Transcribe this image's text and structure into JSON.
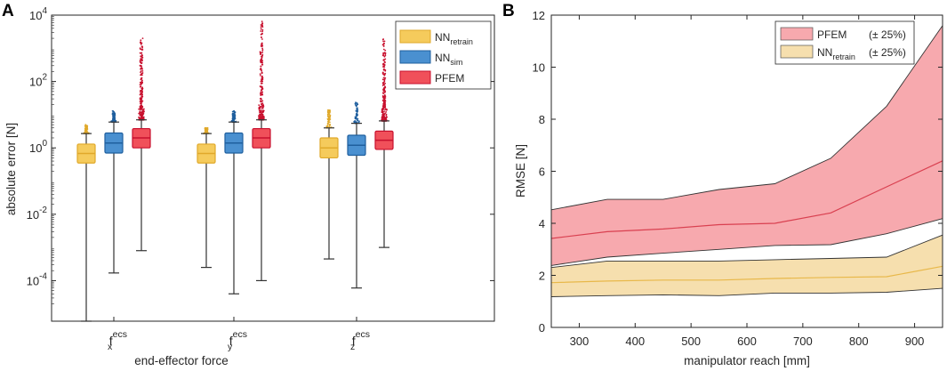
{
  "panels": {
    "a_letter": "A",
    "b_letter": "B"
  },
  "chart_data": [
    {
      "type": "box",
      "panel": "A",
      "xlabel": "end-effector force",
      "ylabel": "absolute error [N]",
      "yscale": "log",
      "ylim": [
        6e-06,
        10000
      ],
      "ytick_labels": [
        {
          "base": "10",
          "exp": "4",
          "value": 10000
        },
        {
          "base": "10",
          "exp": "2",
          "value": 100
        },
        {
          "base": "10",
          "exp": "0",
          "value": 1
        },
        {
          "base": "10",
          "exp": "-2",
          "value": 0.01
        },
        {
          "base": "10",
          "exp": "-4",
          "value": 0.0001
        }
      ],
      "categories": [
        {
          "base": "f",
          "sup": "ecs",
          "sub": "x"
        },
        {
          "base": "f",
          "sup": "ecs",
          "sub": "y"
        },
        {
          "base": "f",
          "sup": "ecs",
          "sub": "z"
        }
      ],
      "legend": [
        {
          "base": "NN",
          "sub": "retrain",
          "color": "#f5cb5c",
          "edge": "#e0a92a"
        },
        {
          "base": "NN",
          "sub": "sim",
          "color": "#4a90d0",
          "edge": "#1f5f9e"
        },
        {
          "base": "PFEM",
          "sub": "",
          "color": "#f0505a",
          "edge": "#c8102e"
        }
      ],
      "series": [
        {
          "name": "NN_retrain",
          "color": "#f5cb5c",
          "edge": "#e0a92a",
          "boxes": [
            {
              "whislo": 6e-06,
              "q1": 0.35,
              "med": 0.68,
              "q3": 1.3,
              "whishi": 2.7,
              "outmax": 5
            },
            {
              "whislo": 0.00025,
              "q1": 0.35,
              "med": 0.68,
              "q3": 1.3,
              "whishi": 2.7,
              "outmax": 4
            },
            {
              "whislo": 0.00045,
              "q1": 0.5,
              "med": 1.0,
              "q3": 2.0,
              "whishi": 4.0,
              "outmax": 15
            }
          ]
        },
        {
          "name": "NN_sim",
          "color": "#4a90d0",
          "edge": "#1f5f9e",
          "boxes": [
            {
              "whislo": 0.00017,
              "q1": 0.7,
              "med": 1.4,
              "q3": 2.8,
              "whishi": 6.0,
              "outmax": 13
            },
            {
              "whislo": 4e-05,
              "q1": 0.7,
              "med": 1.4,
              "q3": 2.8,
              "whishi": 6.0,
              "outmax": 13
            },
            {
              "whislo": 6e-05,
              "q1": 0.6,
              "med": 1.2,
              "q3": 2.4,
              "whishi": 5.5,
              "outmax": 25
            }
          ]
        },
        {
          "name": "PFEM",
          "color": "#f0505a",
          "edge": "#c8102e",
          "boxes": [
            {
              "whislo": 0.0008,
              "q1": 1.0,
              "med": 2.0,
              "q3": 3.8,
              "whishi": 7.0,
              "outmax": 2000
            },
            {
              "whislo": 0.0001,
              "q1": 1.0,
              "med": 2.0,
              "q3": 3.8,
              "whishi": 7.0,
              "outmax": 7000
            },
            {
              "whislo": 0.001,
              "q1": 0.9,
              "med": 1.7,
              "q3": 3.2,
              "whishi": 6.5,
              "outmax": 2000
            }
          ]
        }
      ]
    },
    {
      "type": "area",
      "panel": "B",
      "xlabel": "manipulator reach [mm]",
      "ylabel": "RMSE [N]",
      "xlim": [
        250,
        950
      ],
      "ylim": [
        0,
        12
      ],
      "xticks": [
        300,
        400,
        500,
        600,
        700,
        800,
        900
      ],
      "yticks": [
        0,
        2,
        4,
        6,
        8,
        10,
        12
      ],
      "x": [
        250,
        350,
        450,
        550,
        650,
        750,
        850,
        950
      ],
      "legend": [
        {
          "base": "PFEM",
          "sub": "",
          "note": "(± 25%)",
          "fill": "#f7a9ae",
          "line": "#d94050"
        },
        {
          "base": "NN",
          "sub": "retrain",
          "note": "(± 25%)",
          "fill": "#f6dfae",
          "line": "#e8b84a"
        }
      ],
      "series": [
        {
          "name": "PFEM",
          "fill": "#f7a9ae",
          "line": "#d94050",
          "mean": [
            3.42,
            3.68,
            3.78,
            3.95,
            4.0,
            4.4,
            5.4,
            6.4
          ],
          "upper": [
            4.52,
            4.92,
            4.92,
            5.3,
            5.52,
            6.5,
            8.5,
            11.6
          ],
          "lower": [
            2.38,
            2.7,
            2.85,
            3.0,
            3.15,
            3.18,
            3.6,
            4.18
          ]
        },
        {
          "name": "NN_retrain",
          "fill": "#f6dfae",
          "line": "#e8b84a",
          "mean": [
            1.72,
            1.78,
            1.82,
            1.82,
            1.88,
            1.92,
            1.95,
            2.35
          ],
          "upper": [
            2.3,
            2.55,
            2.55,
            2.55,
            2.6,
            2.65,
            2.7,
            3.55
          ],
          "lower": [
            1.18,
            1.22,
            1.25,
            1.22,
            1.32,
            1.32,
            1.35,
            1.5
          ]
        }
      ]
    }
  ]
}
